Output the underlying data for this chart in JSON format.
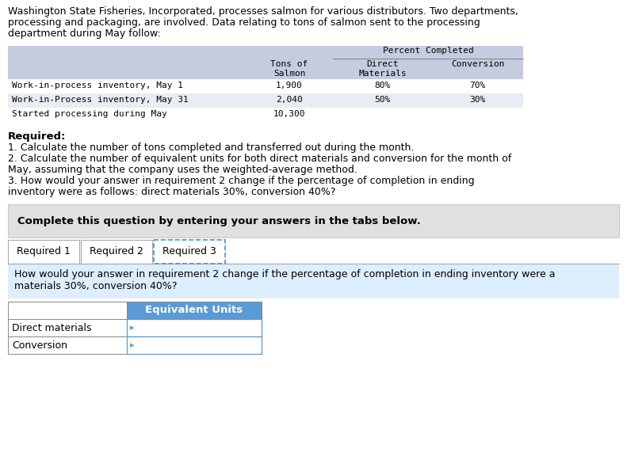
{
  "intro_text_lines": [
    "Washington State Fisheries, Incorporated, processes salmon for various distributors. Two departments,",
    "processing and packaging, are involved. Data relating to tons of salmon sent to the processing",
    "department during May follow:"
  ],
  "table_rows": [
    [
      "Work-in-process inventory, May 1",
      "1,900",
      "80%",
      "70%"
    ],
    [
      "Work-in-Process inventory, May 31",
      "2,040",
      "50%",
      "30%"
    ],
    [
      "Started processing during May",
      "10,300",
      "",
      ""
    ]
  ],
  "required_label": "Required:",
  "required_items": [
    "1. Calculate the number of tons completed and transferred out during the month.",
    "2. Calculate the number of equivalent units for both direct materials and conversion for the month of",
    "May, assuming that the company uses the weighted-average method.",
    "3. How would your answer in requirement 2 change if the percentage of completion in ending",
    "inventory were as follows: direct materials 30%, conversion 40%?"
  ],
  "complete_text": "Complete this question by entering your answers in the tabs below.",
  "tab_labels": [
    "Required 1",
    "Required 2",
    "Required 3"
  ],
  "active_tab": 2,
  "question_text_lines": [
    "How would your answer in requirement 2 change if the percentage of completion in ending inventory were a",
    "materials 30%, conversion 40%?"
  ],
  "bottom_table_header": "Equivalent Units",
  "bottom_table_rows": [
    "Direct materials",
    "Conversion"
  ],
  "bg_color": "#ffffff",
  "table_header_bg": "#c5cce0",
  "table_row0_bg": "#ffffff",
  "table_row1_bg": "#e8ecf4",
  "table_row2_bg": "#ffffff",
  "complete_box_bg": "#e0e0e0",
  "tab_active_border": "#4a90d9",
  "tab_border": "#aaaaaa",
  "question_bg": "#ddeeff",
  "bottom_header_bg": "#5b9bd5",
  "bottom_header_text": "#ffffff",
  "text_color": "#000000",
  "mono_font": "monospace",
  "sans_font": "DejaVu Sans"
}
